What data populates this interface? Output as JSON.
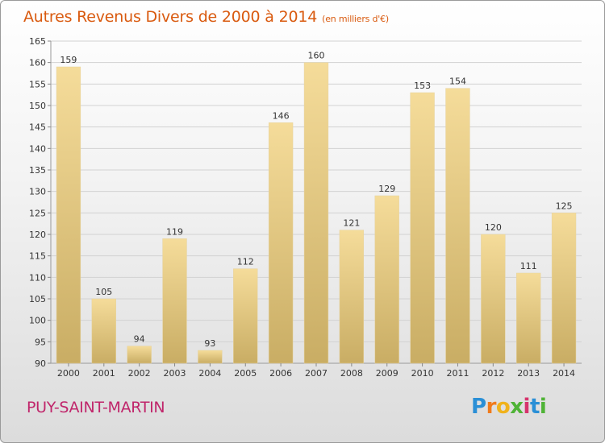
{
  "title": "Autres Revenus Divers de 2000 à 2014",
  "unit": "(en milliers d'€)",
  "place": "PUY-SAINT-MARTIN",
  "logo": {
    "letters": [
      "P",
      "r",
      "o",
      "x",
      "i",
      "t",
      "i"
    ]
  },
  "colors": {
    "title": "#d95a0f",
    "place": "#c0266b",
    "bar_top": "#f5dc9a",
    "bar_bottom": "#c9ad64",
    "grid": "#d2d2d2"
  },
  "chart_data": {
    "type": "bar",
    "categories": [
      "2000",
      "2001",
      "2002",
      "2003",
      "2004",
      "2005",
      "2006",
      "2007",
      "2008",
      "2009",
      "2010",
      "2011",
      "2012",
      "2013",
      "2014"
    ],
    "values": [
      159,
      105,
      94,
      119,
      93,
      112,
      146,
      160,
      121,
      129,
      153,
      154,
      120,
      111,
      125
    ],
    "ylim": [
      90,
      165
    ],
    "yticks": [
      90,
      95,
      100,
      105,
      110,
      115,
      120,
      125,
      130,
      135,
      140,
      145,
      150,
      155,
      160,
      165
    ],
    "grid": true,
    "xlabel": "",
    "ylabel": ""
  }
}
